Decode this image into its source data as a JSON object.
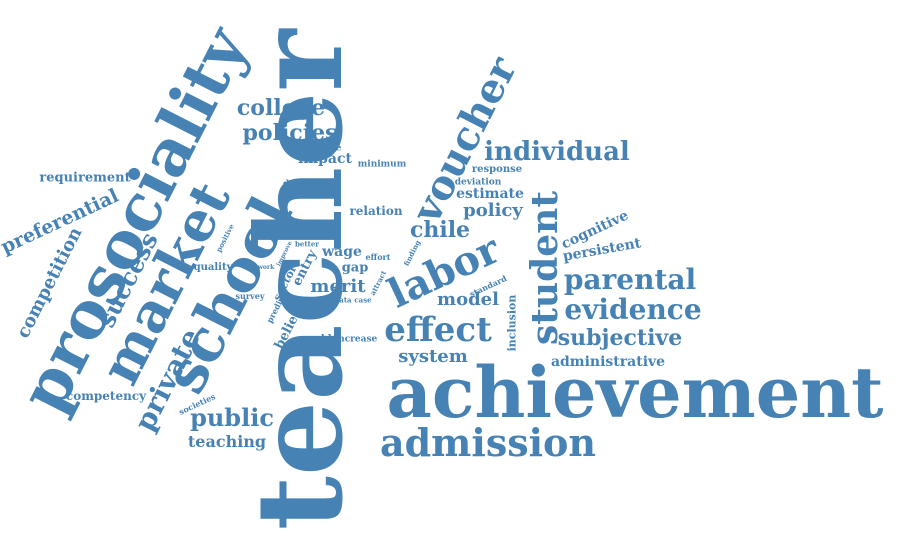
{
  "cloud": {
    "color": "#4682b4",
    "words": [
      "teacher",
      "achievement",
      "prosociality",
      "school",
      "market",
      "labor",
      "student",
      "voucher",
      "effect",
      "admission",
      "private",
      "parental",
      "evidence",
      "individual",
      "college",
      "policies",
      "public",
      "subjective",
      "success",
      "chile",
      "competition",
      "preferential",
      "model",
      "system",
      "policy",
      "merit",
      "estimate",
      "administrative",
      "teaching",
      "impact",
      "cognitive",
      "persistent",
      "relation",
      "requirement",
      "competency",
      "wage",
      "entry",
      "gap",
      "belief",
      "inclusion",
      "sector",
      "quality",
      "world",
      "increase",
      "response",
      "deviation",
      "countrie",
      "minimum",
      "dynamic",
      "survey",
      "societies",
      "positive",
      "predict",
      "case",
      "data",
      "standard",
      "finding",
      "effort",
      "attract",
      "better",
      "improve",
      "work"
    ]
  }
}
